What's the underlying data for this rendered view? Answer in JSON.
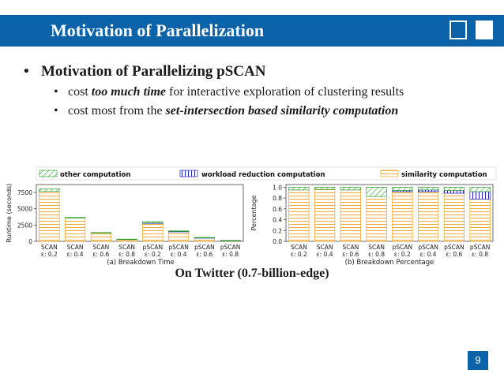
{
  "slide": {
    "title": "Motivation of Parallelization",
    "page_number": "9",
    "bullet_main": "Motivation of Parallelizing pSCAN",
    "sub1_pre": "cost ",
    "sub1_em": "too much time",
    "sub1_post": " for interactive exploration of clustering results",
    "sub2_pre": "cost most from the ",
    "sub2_em": "set-intersection based similarity computation",
    "caption": "On Twitter (0.7-billion-edge)",
    "colors": {
      "accent": "#0a62a8",
      "other": "#2ca02c",
      "workload": "#1f1fbf",
      "similarity": "#f0a020"
    }
  },
  "chart_data": [
    {
      "type": "bar",
      "stacked": true,
      "caption": "(a) Breakdown Time",
      "ylabel": "Runtime (seconds)",
      "ylim": [
        0,
        8700
      ],
      "yticks": [
        0,
        2500,
        5000,
        7500
      ],
      "categories": [
        [
          "SCAN",
          "ε: 0.2"
        ],
        [
          "SCAN",
          "ε: 0.4"
        ],
        [
          "SCAN",
          "ε: 0.6"
        ],
        [
          "SCAN",
          "ε: 0.8"
        ],
        [
          "pSCAN",
          "ε: 0.2"
        ],
        [
          "pSCAN",
          "ε: 0.4"
        ],
        [
          "pSCAN",
          "ε: 0.6"
        ],
        [
          "pSCAN",
          "ε: 0.8"
        ]
      ],
      "series": [
        {
          "name": "similarity computation",
          "values": [
            7650,
            3550,
            1300,
            280,
            2800,
            1500,
            550,
            120
          ]
        },
        {
          "name": "workload reduction computation",
          "values": [
            0,
            0,
            0,
            0,
            30,
            20,
            10,
            5
          ]
        },
        {
          "name": "other computation",
          "values": [
            400,
            150,
            60,
            60,
            200,
            80,
            40,
            20
          ]
        }
      ]
    },
    {
      "type": "bar",
      "stacked": true,
      "caption": "(b) Breakdown Percentage",
      "ylabel": "Percentage",
      "ylim": [
        0,
        1.05
      ],
      "yticks": [
        0.0,
        0.2,
        0.4,
        0.6,
        0.8,
        1.0
      ],
      "categories": [
        [
          "SCAN",
          "ε: 0.2"
        ],
        [
          "SCAN",
          "ε: 0.4"
        ],
        [
          "SCAN",
          "ε: 0.6"
        ],
        [
          "SCAN",
          "ε: 0.8"
        ],
        [
          "pSCAN",
          "ε: 0.2"
        ],
        [
          "pSCAN",
          "ε: 0.4"
        ],
        [
          "pSCAN",
          "ε: 0.6"
        ],
        [
          "pSCAN",
          "ε: 0.8"
        ]
      ],
      "series": [
        {
          "name": "similarity computation",
          "values": [
            0.95,
            0.96,
            0.95,
            0.83,
            0.92,
            0.92,
            0.89,
            0.78
          ]
        },
        {
          "name": "workload reduction computation",
          "values": [
            0.0,
            0.0,
            0.0,
            0.0,
            0.02,
            0.03,
            0.05,
            0.14
          ]
        },
        {
          "name": "other computation",
          "values": [
            0.05,
            0.04,
            0.05,
            0.17,
            0.06,
            0.05,
            0.06,
            0.08
          ]
        }
      ]
    }
  ],
  "legend": {
    "other": "other computation",
    "workload": "workload reduction computation",
    "similarity": "similarity computation"
  }
}
